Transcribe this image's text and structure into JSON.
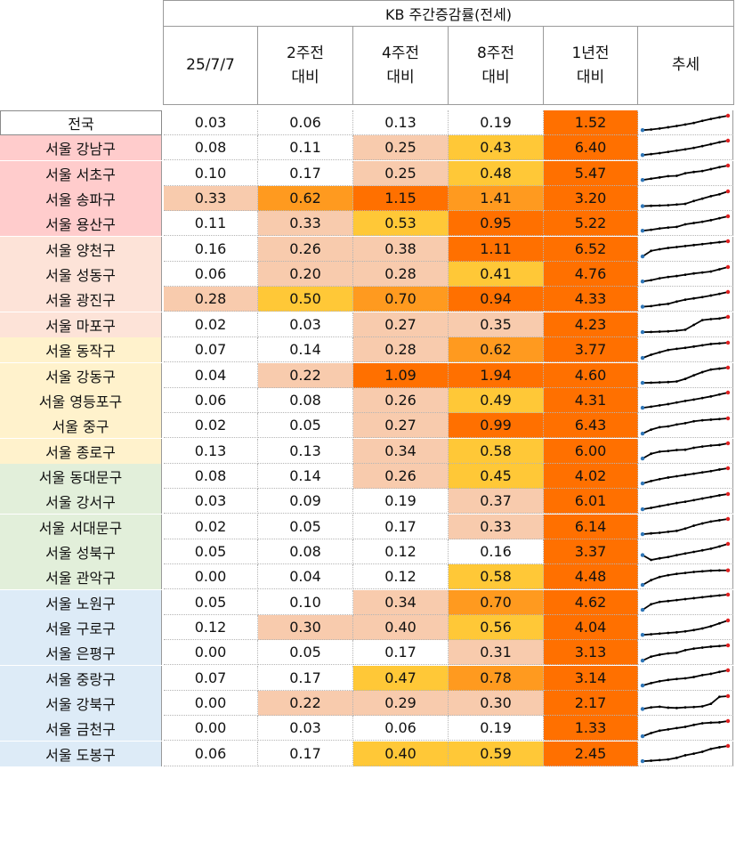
{
  "header": {
    "group_title": "KB 주간증감률(전세)",
    "columns": [
      {
        "line1": "25/7/7",
        "line2": ""
      },
      {
        "line1": "2주전",
        "line2": "대비"
      },
      {
        "line1": "4주전",
        "line2": "대비"
      },
      {
        "line1": "8주전",
        "line2": "대비"
      },
      {
        "line1": "1년전",
        "line2": "대비"
      },
      {
        "line1": "추세",
        "line2": ""
      }
    ]
  },
  "colors": {
    "nation_bg": "#ffffff",
    "group1_bg": "#ffcccc",
    "group2_bg": "#fde3d8",
    "group3_bg": "#fff2cc",
    "group4_bg": "#e2efda",
    "group5_bg": "#ddebf7",
    "heat_none": "#ffffff",
    "heat_light": "#f8cbad",
    "heat_yellow": "#ffc837",
    "heat_orange": "#ff9a1f",
    "heat_deep": "#ff7000",
    "trend_line": "#000000",
    "trend_start": "#2e75b6",
    "trend_end": "#e02020"
  },
  "rows": [
    {
      "name": "전국",
      "group": "nation",
      "values": [
        "0.03",
        "0.06",
        "0.13",
        "0.19",
        "1.52"
      ],
      "heat": [
        "none",
        "none",
        "none",
        "none",
        "deep"
      ],
      "trend": [
        0.1,
        0.14,
        0.2,
        0.28,
        0.36,
        0.45,
        0.55,
        0.68,
        0.8,
        0.9,
        1.0
      ]
    },
    {
      "name": "서울 강남구",
      "group": "g1",
      "values": [
        "0.08",
        "0.11",
        "0.25",
        "0.43",
        "6.40"
      ],
      "heat": [
        "none",
        "none",
        "light",
        "yellow",
        "deep"
      ],
      "trend": [
        0.1,
        0.16,
        0.22,
        0.3,
        0.38,
        0.46,
        0.55,
        0.66,
        0.78,
        0.9,
        1.0
      ]
    },
    {
      "name": "서울 서초구",
      "group": "g1",
      "values": [
        "0.10",
        "0.17",
        "0.25",
        "0.48",
        "5.47"
      ],
      "heat": [
        "none",
        "none",
        "light",
        "yellow",
        "deep"
      ],
      "trend": [
        0.1,
        0.18,
        0.26,
        0.34,
        0.36,
        0.52,
        0.6,
        0.66,
        0.78,
        0.9,
        1.0
      ]
    },
    {
      "name": "서울 송파구",
      "group": "g1",
      "values": [
        "0.33",
        "0.62",
        "1.15",
        "1.41",
        "3.20"
      ],
      "heat": [
        "light",
        "orange",
        "deep",
        "orange",
        "deep"
      ],
      "trend": [
        0.08,
        0.1,
        0.12,
        0.14,
        0.18,
        0.22,
        0.4,
        0.55,
        0.7,
        0.82,
        1.0
      ]
    },
    {
      "name": "서울 용산구",
      "group": "g1",
      "values": [
        "0.11",
        "0.33",
        "0.53",
        "0.95",
        "5.22"
      ],
      "heat": [
        "none",
        "light",
        "yellow",
        "deep",
        "deep"
      ],
      "trend": [
        0.1,
        0.16,
        0.24,
        0.3,
        0.34,
        0.5,
        0.58,
        0.66,
        0.76,
        0.88,
        1.0
      ]
    },
    {
      "name": "서울 양천구",
      "group": "g2",
      "values": [
        "0.16",
        "0.26",
        "0.38",
        "1.11",
        "6.52"
      ],
      "heat": [
        "none",
        "light",
        "light",
        "deep",
        "deep"
      ],
      "trend": [
        0.05,
        0.4,
        0.5,
        0.58,
        0.64,
        0.7,
        0.76,
        0.82,
        0.88,
        0.94,
        1.0
      ]
    },
    {
      "name": "서울 성동구",
      "group": "g2",
      "values": [
        "0.06",
        "0.20",
        "0.28",
        "0.41",
        "4.76"
      ],
      "heat": [
        "none",
        "light",
        "light",
        "yellow",
        "deep"
      ],
      "trend": [
        0.1,
        0.18,
        0.3,
        0.38,
        0.44,
        0.52,
        0.6,
        0.66,
        0.72,
        0.86,
        1.0
      ]
    },
    {
      "name": "서울 광진구",
      "group": "g2",
      "values": [
        "0.28",
        "0.50",
        "0.70",
        "0.94",
        "4.33"
      ],
      "heat": [
        "light",
        "yellow",
        "orange",
        "deep",
        "deep"
      ],
      "trend": [
        0.08,
        0.12,
        0.2,
        0.26,
        0.4,
        0.52,
        0.6,
        0.68,
        0.78,
        0.88,
        1.0
      ]
    },
    {
      "name": "서울 마포구",
      "group": "g2",
      "values": [
        "0.02",
        "0.03",
        "0.27",
        "0.35",
        "4.23"
      ],
      "heat": [
        "none",
        "none",
        "light",
        "light",
        "deep"
      ],
      "trend": [
        0.05,
        0.06,
        0.08,
        0.1,
        0.14,
        0.2,
        0.5,
        0.8,
        0.86,
        0.9,
        1.0
      ]
    },
    {
      "name": "서울 동작구",
      "group": "g3",
      "values": [
        "0.07",
        "0.14",
        "0.28",
        "0.62",
        "3.77"
      ],
      "heat": [
        "none",
        "none",
        "light",
        "orange",
        "deep"
      ],
      "trend": [
        0.05,
        0.25,
        0.4,
        0.55,
        0.62,
        0.68,
        0.76,
        0.84,
        0.92,
        0.96,
        1.0
      ]
    },
    {
      "name": "서울 강동구",
      "group": "g3",
      "values": [
        "0.04",
        "0.22",
        "1.09",
        "1.94",
        "4.60"
      ],
      "heat": [
        "none",
        "light",
        "deep",
        "deep",
        "deep"
      ],
      "trend": [
        0.05,
        0.06,
        0.08,
        0.1,
        0.14,
        0.3,
        0.52,
        0.72,
        0.88,
        0.94,
        1.0
      ]
    },
    {
      "name": "서울 영등포구",
      "group": "g3",
      "values": [
        "0.06",
        "0.08",
        "0.26",
        "0.49",
        "4.31"
      ],
      "heat": [
        "none",
        "none",
        "light",
        "yellow",
        "deep"
      ],
      "trend": [
        0.05,
        0.12,
        0.2,
        0.28,
        0.38,
        0.48,
        0.56,
        0.66,
        0.76,
        0.88,
        1.0
      ]
    },
    {
      "name": "서울 중구",
      "group": "g3",
      "values": [
        "0.02",
        "0.05",
        "0.27",
        "0.99",
        "6.43"
      ],
      "heat": [
        "none",
        "none",
        "light",
        "deep",
        "deep"
      ],
      "trend": [
        0.05,
        0.3,
        0.45,
        0.5,
        0.62,
        0.7,
        0.82,
        0.88,
        0.92,
        0.96,
        1.0
      ]
    },
    {
      "name": "서울 종로구",
      "group": "g3",
      "values": [
        "0.13",
        "0.13",
        "0.34",
        "0.58",
        "6.00"
      ],
      "heat": [
        "none",
        "none",
        "light",
        "yellow",
        "deep"
      ],
      "trend": [
        0.05,
        0.35,
        0.48,
        0.52,
        0.58,
        0.6,
        0.72,
        0.8,
        0.86,
        0.9,
        1.0
      ]
    },
    {
      "name": "서울 동대문구",
      "group": "g4",
      "values": [
        "0.08",
        "0.14",
        "0.26",
        "0.45",
        "4.02"
      ],
      "heat": [
        "none",
        "none",
        "light",
        "yellow",
        "deep"
      ],
      "trend": [
        0.05,
        0.2,
        0.32,
        0.42,
        0.5,
        0.58,
        0.66,
        0.74,
        0.82,
        0.92,
        1.0
      ]
    },
    {
      "name": "서울 강서구",
      "group": "g4",
      "values": [
        "0.03",
        "0.09",
        "0.19",
        "0.37",
        "6.01"
      ],
      "heat": [
        "none",
        "none",
        "none",
        "light",
        "deep"
      ],
      "trend": [
        0.05,
        0.14,
        0.24,
        0.34,
        0.44,
        0.52,
        0.62,
        0.72,
        0.82,
        0.92,
        1.0
      ]
    },
    {
      "name": "서울 서대문구",
      "group": "g4",
      "values": [
        "0.02",
        "0.05",
        "0.17",
        "0.33",
        "6.14"
      ],
      "heat": [
        "none",
        "none",
        "none",
        "light",
        "deep"
      ],
      "trend": [
        0.05,
        0.1,
        0.14,
        0.2,
        0.26,
        0.4,
        0.58,
        0.72,
        0.84,
        0.92,
        1.0
      ]
    },
    {
      "name": "서울 성북구",
      "group": "g4",
      "values": [
        "0.05",
        "0.08",
        "0.12",
        "0.16",
        "3.37"
      ],
      "heat": [
        "none",
        "none",
        "none",
        "none",
        "deep"
      ],
      "trend": [
        0.3,
        0.0,
        0.1,
        0.18,
        0.3,
        0.4,
        0.5,
        0.6,
        0.7,
        0.84,
        1.0
      ]
    },
    {
      "name": "서울 관악구",
      "group": "g4",
      "values": [
        "0.00",
        "0.04",
        "0.12",
        "0.58",
        "4.48"
      ],
      "heat": [
        "none",
        "none",
        "none",
        "yellow",
        "deep"
      ],
      "trend": [
        0.05,
        0.35,
        0.55,
        0.66,
        0.74,
        0.8,
        0.86,
        0.9,
        0.94,
        0.96,
        0.96
      ]
    },
    {
      "name": "서울 노원구",
      "group": "g5",
      "values": [
        "0.05",
        "0.10",
        "0.34",
        "0.70",
        "4.62"
      ],
      "heat": [
        "none",
        "none",
        "light",
        "orange",
        "deep"
      ],
      "trend": [
        0.05,
        0.4,
        0.55,
        0.6,
        0.66,
        0.72,
        0.78,
        0.84,
        0.9,
        0.95,
        1.0
      ]
    },
    {
      "name": "서울 구로구",
      "group": "g5",
      "values": [
        "0.12",
        "0.30",
        "0.40",
        "0.56",
        "4.04"
      ],
      "heat": [
        "none",
        "light",
        "light",
        "yellow",
        "deep"
      ],
      "trend": [
        0.1,
        0.14,
        0.18,
        0.22,
        0.26,
        0.32,
        0.4,
        0.5,
        0.64,
        0.82,
        1.0
      ]
    },
    {
      "name": "서울 은평구",
      "group": "g5",
      "values": [
        "0.00",
        "0.05",
        "0.17",
        "0.31",
        "3.13"
      ],
      "heat": [
        "none",
        "none",
        "none",
        "light",
        "deep"
      ],
      "trend": [
        0.05,
        0.3,
        0.42,
        0.5,
        0.54,
        0.7,
        0.8,
        0.86,
        0.92,
        0.96,
        1.0
      ]
    },
    {
      "name": "서울 중랑구",
      "group": "g5",
      "values": [
        "0.07",
        "0.17",
        "0.47",
        "0.78",
        "3.14"
      ],
      "heat": [
        "none",
        "none",
        "yellow",
        "orange",
        "deep"
      ],
      "trend": [
        0.05,
        0.2,
        0.32,
        0.4,
        0.46,
        0.5,
        0.58,
        0.7,
        0.78,
        0.9,
        1.0
      ]
    },
    {
      "name": "서울 강북구",
      "group": "g5",
      "values": [
        "0.00",
        "0.22",
        "0.29",
        "0.30",
        "2.17"
      ],
      "heat": [
        "none",
        "light",
        "light",
        "light",
        "deep"
      ],
      "trend": [
        0.2,
        0.3,
        0.34,
        0.28,
        0.26,
        0.3,
        0.32,
        0.36,
        0.52,
        0.96,
        1.0
      ]
    },
    {
      "name": "서울 금천구",
      "group": "g5",
      "values": [
        "0.00",
        "0.03",
        "0.06",
        "0.19",
        "1.33"
      ],
      "heat": [
        "none",
        "none",
        "none",
        "none",
        "deep"
      ],
      "trend": [
        0.05,
        0.25,
        0.4,
        0.48,
        0.56,
        0.64,
        0.76,
        0.86,
        0.9,
        0.92,
        1.0
      ]
    },
    {
      "name": "서울 도봉구",
      "group": "g5",
      "values": [
        "0.06",
        "0.17",
        "0.40",
        "0.59",
        "2.45"
      ],
      "heat": [
        "none",
        "none",
        "yellow",
        "yellow",
        "deep"
      ],
      "trend": [
        0.05,
        0.08,
        0.12,
        0.16,
        0.26,
        0.42,
        0.52,
        0.64,
        0.82,
        0.92,
        1.0
      ]
    }
  ]
}
